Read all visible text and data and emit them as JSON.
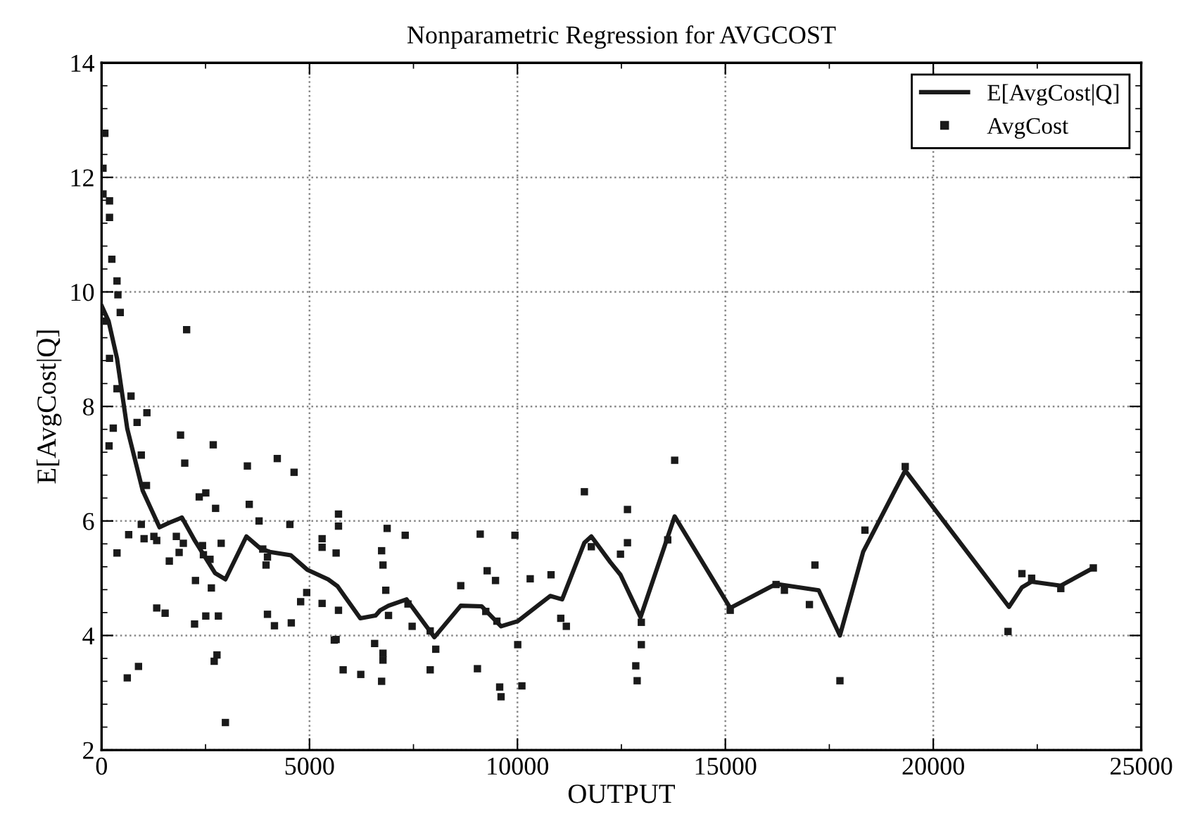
{
  "chart_data": {
    "type": "line",
    "title": "Nonparametric Regression for AVGCOST",
    "xlabel": "OUTPUT",
    "ylabel": "E[AvgCost|Q]",
    "xlim": [
      0,
      25000
    ],
    "xticks": [
      0,
      5000,
      10000,
      15000,
      20000,
      25000
    ],
    "ylim": [
      2,
      14
    ],
    "yticks": [
      2,
      4,
      6,
      8,
      10,
      12,
      14
    ],
    "grid": true,
    "legend": "top right",
    "series": [
      {
        "name": "E[AvgCost|Q]",
        "color": "#1a1a1a",
        "marker": "none",
        "line_style": "solid",
        "x": [
          0,
          169,
          371,
          618,
          989,
          1393,
          1629,
          1933,
          2247,
          2730,
          2978,
          3483,
          3820,
          4045,
          4551,
          4944,
          5449,
          5674,
          5899,
          6222,
          6590,
          6700,
          6900,
          7335,
          8003,
          8637,
          9138,
          9339,
          9606,
          10007,
          10788,
          11075,
          11610,
          11777,
          12234,
          12478,
          12960,
          13781,
          15117,
          16219,
          17244,
          17755,
          18313,
          19325,
          21820,
          22131,
          22365,
          23066,
          23848
        ],
        "values": [
          9.76,
          9.49,
          8.84,
          7.61,
          6.53,
          5.89,
          5.97,
          6.06,
          5.65,
          5.09,
          4.98,
          5.73,
          5.52,
          5.46,
          5.4,
          5.15,
          4.98,
          4.86,
          4.63,
          4.3,
          4.35,
          4.44,
          4.52,
          4.63,
          3.97,
          4.52,
          4.51,
          4.36,
          4.16,
          4.25,
          4.69,
          4.63,
          5.62,
          5.73,
          5.28,
          5.06,
          4.32,
          6.08,
          4.48,
          4.9,
          4.79,
          4.0,
          5.46,
          6.88,
          4.5,
          4.84,
          4.94,
          4.87,
          5.18
        ]
      },
      {
        "name": "AvgCost",
        "type": "scatter",
        "color": "#1a1a1a",
        "marker": "square",
        "x": [
          79,
          34,
          34,
          191,
          191,
          247,
          371,
          393,
          449,
          56,
          2045,
          191,
          371,
          708,
          1090,
          854,
          281,
          180,
          955,
          1899,
          2685,
          2000,
          4225,
          3506,
          4629,
          1079,
          2348,
          2506,
          2742,
          3551,
          3787,
          5697,
          5697,
          4528,
          955,
          652,
          1022,
          1258,
          1326,
          1798,
          1966,
          1865,
          1629,
          2427,
          2449,
          2607,
          2876,
          371,
          3876,
          3989,
          3955,
          5303,
          5303,
          5640,
          2258,
          2640,
          4933,
          4787,
          5303,
          5697,
          1326,
          1528,
          2236,
          2506,
          2809,
          3989,
          4157,
          4562,
          5640,
          5596,
          2775,
          2708,
          5809,
          888,
          618,
          2978,
          6867,
          7301,
          6734,
          6767,
          6834,
          6900,
          7368,
          7468,
          7902,
          8036,
          6566,
          6767,
          6767,
          6233,
          6734,
          7902,
          8637,
          9105,
          9038,
          9272,
          9473,
          9239,
          9506,
          9573,
          9606,
          9940,
          10007,
          10107,
          10307,
          10808,
          11042,
          11176,
          11610,
          11777,
          12646,
          13781,
          12646,
          12478,
          13614,
          12979,
          12979,
          12846,
          12879,
          15117,
          16219,
          16420,
          17154,
          17021,
          17755,
          18356,
          19325,
          22131,
          22365,
          23066,
          23848,
          21797
        ],
        "values": [
          12.77,
          12.16,
          11.71,
          11.59,
          11.3,
          10.57,
          10.19,
          9.95,
          9.64,
          9.49,
          9.34,
          8.84,
          8.31,
          8.18,
          7.89,
          7.72,
          7.62,
          7.31,
          7.15,
          7.5,
          7.33,
          7.01,
          7.09,
          6.96,
          6.85,
          6.62,
          6.42,
          6.49,
          6.22,
          6.29,
          6.0,
          6.12,
          5.91,
          5.94,
          5.94,
          5.76,
          5.69,
          5.73,
          5.66,
          5.73,
          5.61,
          5.45,
          5.3,
          5.57,
          5.41,
          5.33,
          5.61,
          5.44,
          5.51,
          5.37,
          5.23,
          5.69,
          5.54,
          5.44,
          4.96,
          4.83,
          4.75,
          4.59,
          4.56,
          4.44,
          4.48,
          4.39,
          4.2,
          4.34,
          4.34,
          4.37,
          4.17,
          4.22,
          3.93,
          3.92,
          3.66,
          3.55,
          3.4,
          3.46,
          3.26,
          2.48,
          5.87,
          5.75,
          5.48,
          5.23,
          4.79,
          4.35,
          4.55,
          4.16,
          4.08,
          3.76,
          3.86,
          3.69,
          3.57,
          3.32,
          3.2,
          3.4,
          4.87,
          5.77,
          3.42,
          5.13,
          4.96,
          4.42,
          4.25,
          3.1,
          2.93,
          5.75,
          3.84,
          3.12,
          4.99,
          5.06,
          4.3,
          4.16,
          6.51,
          5.55,
          6.2,
          7.06,
          5.62,
          5.42,
          5.67,
          4.23,
          3.84,
          3.47,
          3.21,
          4.44,
          4.89,
          4.79,
          5.23,
          4.54,
          3.21,
          5.84,
          6.95,
          5.08,
          5.0,
          4.82,
          5.18,
          4.07
        ]
      }
    ]
  }
}
